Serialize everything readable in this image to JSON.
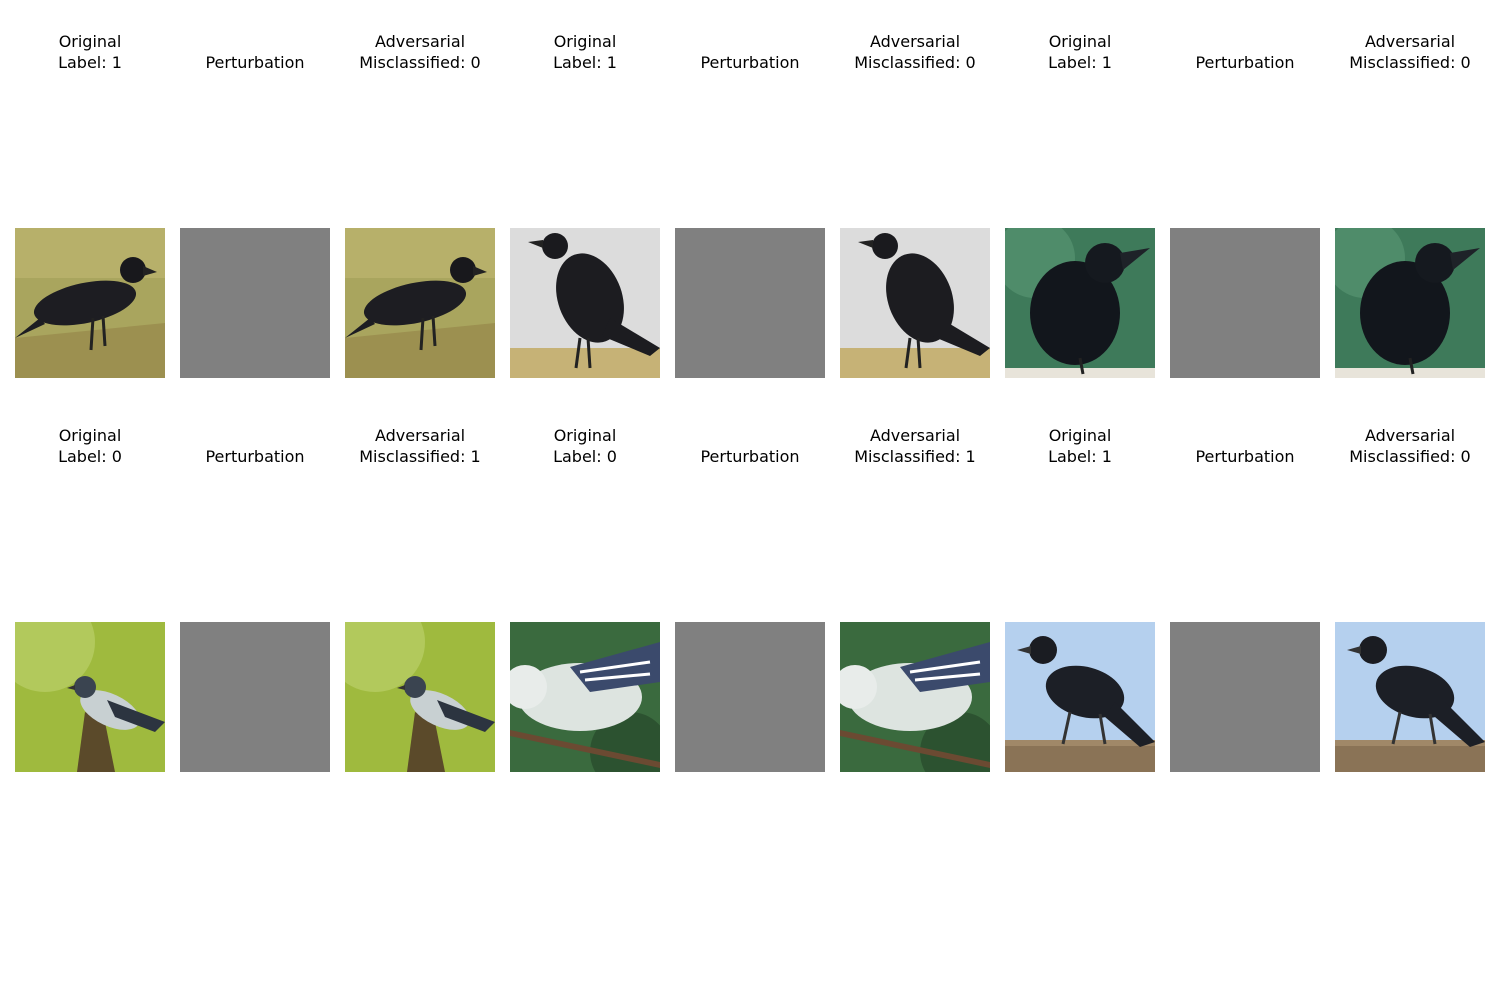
{
  "panels": [
    {
      "title": "Original\nLabel: 1",
      "kind": "crow-grass"
    },
    {
      "title": "Perturbation",
      "kind": "gray"
    },
    {
      "title": "Adversarial\nMisclassified: 0",
      "kind": "crow-grass"
    },
    {
      "title": "Original\nLabel: 1",
      "kind": "crow-standing"
    },
    {
      "title": "Perturbation",
      "kind": "gray"
    },
    {
      "title": "Adversarial\nMisclassified: 0",
      "kind": "crow-standing"
    },
    {
      "title": "Original\nLabel: 1",
      "kind": "crow-green"
    },
    {
      "title": "Perturbation",
      "kind": "gray"
    },
    {
      "title": "Adversarial\nMisclassified: 0",
      "kind": "crow-green"
    },
    {
      "title": "Original\nLabel: 0",
      "kind": "warbler-green"
    },
    {
      "title": "Perturbation",
      "kind": "gray"
    },
    {
      "title": "Adversarial\nMisclassified: 1",
      "kind": "warbler-green"
    },
    {
      "title": "Original\nLabel: 0",
      "kind": "warbler-branch"
    },
    {
      "title": "Perturbation",
      "kind": "gray"
    },
    {
      "title": "Adversarial\nMisclassified: 1",
      "kind": "warbler-branch"
    },
    {
      "title": "Original\nLabel: 1",
      "kind": "crow-sky"
    },
    {
      "title": "Perturbation",
      "kind": "gray"
    },
    {
      "title": "Adversarial\nMisclassified: 0",
      "kind": "crow-sky"
    }
  ],
  "colors": {
    "perturbation": "#808080"
  }
}
